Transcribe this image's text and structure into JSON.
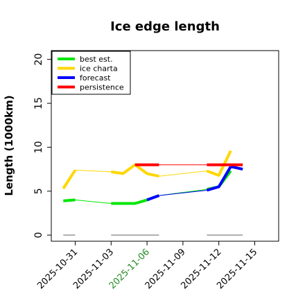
{
  "chart_data": {
    "type": "line",
    "title": "Ice edge length",
    "xlabel": "",
    "ylabel": "Length (1000km)",
    "xlim": [
      "2025-10-29",
      "2025-11-17"
    ],
    "ylim": [
      -0.7,
      21
    ],
    "yticks": [
      0,
      5,
      10,
      15,
      20
    ],
    "xticks": [
      {
        "date": "2025-10-31",
        "label": "2025-10-31",
        "color": "#000000"
      },
      {
        "date": "2025-11-03",
        "label": "2025-11-03",
        "color": "#000000"
      },
      {
        "date": "2025-11-06",
        "label": "2025-11-06",
        "color": "#228B22"
      },
      {
        "date": "2025-11-09",
        "label": "2025-11-09",
        "color": "#000000"
      },
      {
        "date": "2025-11-12",
        "label": "2025-11-12",
        "color": "#000000"
      },
      {
        "date": "2025-11-15",
        "label": "2025-11-15",
        "color": "#000000"
      }
    ],
    "grid": false,
    "legend": "top-left",
    "legend_entries": [
      "best est.",
      "ice charta",
      "forecast",
      "persistence"
    ],
    "series": [
      {
        "name": "best est.",
        "color": "#00e600",
        "segments": [
          {
            "x": [
              "2025-10-30",
              "2025-10-31"
            ],
            "y": [
              3.9,
              4.0
            ],
            "width": "thick"
          },
          {
            "x": [
              "2025-10-31",
              "2025-11-03"
            ],
            "y": [
              4.0,
              3.6
            ],
            "width": "thin"
          },
          {
            "x": [
              "2025-11-03",
              "2025-11-04",
              "2025-11-05",
              "2025-11-06"
            ],
            "y": [
              3.6,
              3.6,
              3.6,
              4.0
            ],
            "width": "thick"
          },
          {
            "x": [
              "2025-11-06",
              "2025-11-07"
            ],
            "y": [
              4.0,
              4.5
            ],
            "width": "thick"
          },
          {
            "x": [
              "2025-11-07",
              "2025-11-11"
            ],
            "y": [
              4.5,
              5.2
            ],
            "width": "thin"
          },
          {
            "x": [
              "2025-11-11",
              "2025-11-12",
              "2025-11-13"
            ],
            "y": [
              5.2,
              5.5,
              7.3
            ],
            "width": "thick"
          }
        ]
      },
      {
        "name": "ice charta",
        "color": "#ffd700",
        "segments": [
          {
            "x": [
              "2025-10-30",
              "2025-10-31"
            ],
            "y": [
              5.3,
              7.4
            ],
            "width": "thick"
          },
          {
            "x": [
              "2025-10-31",
              "2025-11-03"
            ],
            "y": [
              7.4,
              7.2
            ],
            "width": "thin"
          },
          {
            "x": [
              "2025-11-03",
              "2025-11-04",
              "2025-11-05",
              "2025-11-06",
              "2025-11-07"
            ],
            "y": [
              7.2,
              7.0,
              8.0,
              7.0,
              6.7
            ],
            "width": "thick"
          },
          {
            "x": [
              "2025-11-07",
              "2025-11-11"
            ],
            "y": [
              6.7,
              7.3
            ],
            "width": "thin"
          },
          {
            "x": [
              "2025-11-11",
              "2025-11-12",
              "2025-11-13"
            ],
            "y": [
              7.3,
              6.8,
              9.6
            ],
            "width": "thick"
          }
        ]
      },
      {
        "name": "forecast",
        "color": "#0000ff",
        "segments": [
          {
            "x": [
              "2025-11-06",
              "2025-11-07"
            ],
            "y": [
              4.0,
              4.5
            ],
            "width": "thick"
          },
          {
            "x": [
              "2025-11-07",
              "2025-11-11"
            ],
            "y": [
              4.5,
              5.1
            ],
            "width": "thin"
          },
          {
            "x": [
              "2025-11-11",
              "2025-11-12",
              "2025-11-13"
            ],
            "y": [
              5.1,
              5.5,
              7.8
            ],
            "width": "thick"
          },
          {
            "x": [
              "2025-11-13",
              "2025-11-14"
            ],
            "y": [
              7.8,
              7.5
            ],
            "width": "thick"
          }
        ]
      },
      {
        "name": "persistence",
        "color": "#ff0000",
        "segments": [
          {
            "x": [
              "2025-11-05",
              "2025-11-07"
            ],
            "y": [
              8.0,
              8.0
            ],
            "width": "thick"
          },
          {
            "x": [
              "2025-11-07",
              "2025-11-11"
            ],
            "y": [
              8.0,
              8.0
            ],
            "width": "thin"
          },
          {
            "x": [
              "2025-11-11",
              "2025-11-14"
            ],
            "y": [
              8.0,
              8.0
            ],
            "width": "thick"
          }
        ]
      },
      {
        "name": "",
        "color": "#808080",
        "segments": [
          {
            "x": [
              "2025-10-30",
              "2025-10-31"
            ],
            "y": [
              0,
              0
            ],
            "width": "hair"
          },
          {
            "x": [
              "2025-11-03",
              "2025-11-07"
            ],
            "y": [
              0,
              0
            ],
            "width": "hair"
          },
          {
            "x": [
              "2025-11-11",
              "2025-11-14"
            ],
            "y": [
              0,
              0
            ],
            "width": "hair"
          }
        ]
      }
    ]
  }
}
